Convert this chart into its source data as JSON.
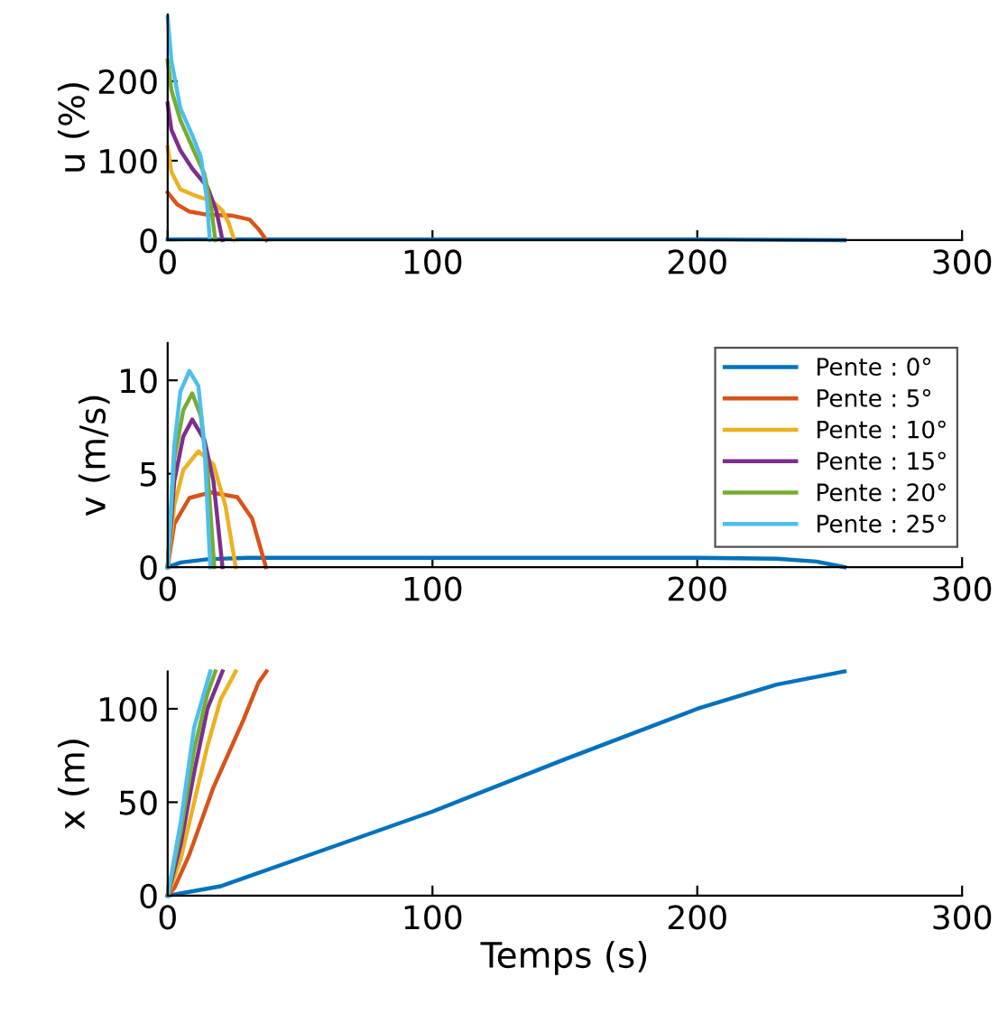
{
  "chart_data": [
    {
      "type": "line",
      "ylabel": "u (%)",
      "xlim": [
        0,
        300
      ],
      "xticks": [
        0,
        100,
        200,
        300
      ],
      "ylim": [
        0,
        284
      ],
      "yticks": [
        0,
        100,
        200
      ],
      "grid": false,
      "legend": false,
      "series": [
        {
          "color": "#0072bd",
          "x": [
            0,
            50,
            100,
            150,
            200,
            255.6
          ],
          "values": [
            1,
            1,
            1,
            1,
            1,
            0
          ]
        },
        {
          "color": "#d95319",
          "x": [
            0,
            3.6,
            8.2,
            15,
            24.1,
            30.9,
            34.3,
            37.3
          ],
          "values": [
            60,
            45,
            36,
            32,
            31,
            26,
            14,
            0
          ]
        },
        {
          "color": "#edb120",
          "x": [
            0,
            1.4,
            4.8,
            10.5,
            17.3,
            20.7,
            23,
            25.2
          ],
          "values": [
            117,
            86,
            64,
            56,
            48,
            37,
            22,
            0
          ]
        },
        {
          "color": "#7e2f8e",
          "x": [
            0,
            1.4,
            4.8,
            9.3,
            15,
            18.4,
            20.7
          ],
          "values": [
            172,
            139,
            113,
            90,
            67,
            37,
            0
          ]
        },
        {
          "color": "#77ac30",
          "x": [
            0,
            1.4,
            4.8,
            9.3,
            13.9,
            16.6,
            18
          ],
          "values": [
            226,
            189,
            151,
            117,
            83,
            37,
            0
          ]
        },
        {
          "color": "#4dbeee",
          "x": [
            0,
            1.4,
            4.8,
            9.3,
            12.5,
            14.8,
            15.9
          ],
          "values": [
            281,
            226,
            166,
            132,
            105,
            52,
            0
          ]
        }
      ]
    },
    {
      "type": "line",
      "ylabel": "v (m/s)",
      "xlim": [
        0,
        300
      ],
      "xticks": [
        0,
        100,
        200,
        300
      ],
      "ylim": [
        0,
        12
      ],
      "yticks": [
        0,
        5,
        10
      ],
      "grid": false,
      "legend": "top right",
      "series": [
        {
          "name": "Pente : 0°",
          "color": "#0072bd",
          "x": [
            0,
            5,
            15,
            30,
            200,
            230,
            245,
            255.6
          ],
          "values": [
            0,
            0.25,
            0.42,
            0.5,
            0.5,
            0.45,
            0.3,
            0
          ]
        },
        {
          "name": "Pente : 5°",
          "color": "#d95319",
          "x": [
            0,
            2.5,
            8.2,
            16.1,
            26.3,
            31.9,
            37.1
          ],
          "values": [
            0,
            2.3,
            3.7,
            4.0,
            3.75,
            2.6,
            0
          ]
        },
        {
          "name": "Pente : 10°",
          "color": "#edb120",
          "x": [
            0,
            2.5,
            5.9,
            11.6,
            17.3,
            21.8,
            25.7
          ],
          "values": [
            0,
            3.3,
            5.2,
            6.2,
            5.5,
            3.3,
            0
          ]
        },
        {
          "name": "Pente : 15°",
          "color": "#7e2f8e",
          "x": [
            0,
            2.5,
            5.9,
            9.3,
            13.9,
            17.3,
            20.7
          ],
          "values": [
            0,
            4.6,
            7.0,
            7.9,
            6.8,
            4.6,
            0
          ]
        },
        {
          "name": "Pente : 20°",
          "color": "#77ac30",
          "x": [
            0,
            2.5,
            5.9,
            9.3,
            12.5,
            15.2,
            17.6
          ],
          "values": [
            0,
            5.8,
            8.4,
            9.3,
            8.1,
            4.9,
            0
          ]
        },
        {
          "name": "Pente : 25°",
          "color": "#4dbeee",
          "x": [
            0,
            2.5,
            4.8,
            8.2,
            11.6,
            13.9,
            16.1
          ],
          "values": [
            0,
            6.5,
            9.4,
            10.5,
            9.7,
            6.5,
            0
          ]
        }
      ]
    },
    {
      "type": "line",
      "xlabel": "Temps (s)",
      "ylabel": "x (m)",
      "xlim": [
        0,
        300
      ],
      "xticks": [
        0,
        100,
        200,
        300
      ],
      "ylim": [
        0,
        120
      ],
      "yticks": [
        0,
        50,
        100
      ],
      "grid": false,
      "legend": false,
      "series": [
        {
          "color": "#0072bd",
          "x": [
            0,
            20,
            50,
            100,
            150,
            200,
            230,
            255.6
          ],
          "values": [
            0,
            5,
            20,
            45,
            73,
            100,
            113,
            120
          ]
        },
        {
          "color": "#d95319",
          "x": [
            0,
            2.5,
            8.2,
            17.3,
            28.6,
            34.3,
            37.3
          ],
          "values": [
            0,
            4,
            22,
            58,
            94,
            114,
            120
          ]
        },
        {
          "color": "#edb120",
          "x": [
            0,
            5,
            10,
            15,
            20,
            25.7
          ],
          "values": [
            0,
            20,
            50,
            80,
            105,
            120
          ]
        },
        {
          "color": "#7e2f8e",
          "x": [
            0,
            5,
            10,
            15,
            20.7
          ],
          "values": [
            0,
            28,
            66,
            100,
            120
          ]
        },
        {
          "color": "#77ac30",
          "x": [
            0,
            5,
            10,
            15,
            18
          ],
          "values": [
            0,
            35,
            78,
            108,
            120
          ]
        },
        {
          "color": "#4dbeee",
          "x": [
            0,
            5,
            10,
            16.1
          ],
          "values": [
            0,
            40,
            90,
            120
          ]
        }
      ]
    }
  ]
}
